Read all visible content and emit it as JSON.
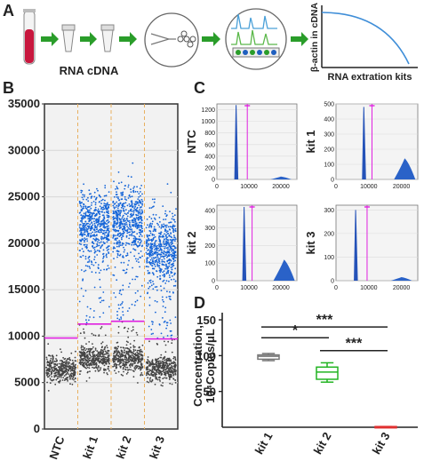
{
  "panels": {
    "A": {
      "letter": "A",
      "sample_label": "RNA cDNA",
      "ylabel": "β-actin in cDNA",
      "xlabel": "RNA extration kits"
    },
    "B": {
      "letter": "B",
      "yticks": [
        "35000",
        "30000",
        "25000",
        "20000",
        "15000",
        "10000",
        "5000",
        "0"
      ],
      "categories": [
        "NTC",
        "kit 1",
        "kit 2",
        "kit 3"
      ]
    },
    "C": {
      "letter": "C",
      "plots": [
        {
          "label": "NTC",
          "yticks": [
            "1200",
            "1000",
            "800",
            "600",
            "400",
            "200",
            "0"
          ],
          "xticks": [
            "0",
            "10000",
            "20000"
          ]
        },
        {
          "label": "kit 1",
          "yticks": [
            "500",
            "400",
            "300",
            "200",
            "100",
            "0"
          ],
          "xticks": [
            "0",
            "10000",
            "20000"
          ]
        },
        {
          "label": "kit 2",
          "yticks": [
            "400",
            "300",
            "200",
            "100",
            "0"
          ],
          "xticks": [
            "0",
            "10000",
            "20000"
          ]
        },
        {
          "label": "kit 3",
          "yticks": [
            "300",
            "200",
            "100",
            "0"
          ],
          "xticks": [
            "0",
            "10000",
            "20000"
          ]
        }
      ]
    },
    "D": {
      "letter": "D",
      "ylabel_1": "Concentration,",
      "ylabel_2": "10⁴Copies/μL",
      "yticks": [
        "150",
        "100",
        "50"
      ],
      "categories": [
        "kit 1",
        "kit 2",
        "kit 3"
      ],
      "sig": [
        "***",
        "*",
        "***"
      ]
    }
  },
  "chart_data": [
    {
      "type": "scatter",
      "panel": "B",
      "categories": [
        "NTC",
        "kit 1",
        "kit 2",
        "kit 3"
      ],
      "ylim": [
        0,
        35000
      ],
      "threshold": [
        9800,
        11300,
        11600,
        9700
      ],
      "negative_center": [
        6500,
        7500,
        7600,
        6500
      ],
      "positive_center": [
        null,
        22000,
        22500,
        19500
      ],
      "colors": {
        "positive": "#1565d8",
        "negative": "#444444",
        "threshold": "#e020e0"
      }
    },
    {
      "type": "area",
      "panel": "C",
      "xlim": [
        0,
        25000
      ],
      "series": [
        {
          "label": "NTC",
          "ylim": [
            0,
            1300
          ],
          "neg_peak": [
            6000,
            1280
          ],
          "pos_peak": [
            20000,
            50
          ],
          "threshold": 9500
        },
        {
          "label": "kit 1",
          "ylim": [
            0,
            500
          ],
          "neg_peak": [
            8500,
            480
          ],
          "pos_peak": [
            21000,
            140
          ],
          "threshold": 11000
        },
        {
          "label": "kit 2",
          "ylim": [
            0,
            430
          ],
          "neg_peak": [
            8500,
            420
          ],
          "pos_peak": [
            21000,
            120
          ],
          "threshold": 11000
        },
        {
          "label": "kit 3",
          "ylim": [
            0,
            320
          ],
          "neg_peak": [
            6000,
            300
          ],
          "pos_peak": [
            20000,
            15
          ],
          "threshold": 9500
        }
      ]
    },
    {
      "type": "box",
      "panel": "D",
      "categories": [
        "kit 1",
        "kit 2",
        "kit 3"
      ],
      "ylim": [
        0,
        160
      ],
      "boxes": [
        {
          "min": 93,
          "q1": 95,
          "median": 99,
          "q3": 101,
          "max": 103,
          "color": "#777777"
        },
        {
          "min": 63,
          "q1": 67,
          "median": 77,
          "q3": 84,
          "max": 90,
          "color": "#22b422"
        },
        {
          "min": 0,
          "q1": 0,
          "median": 0.5,
          "q3": 1,
          "max": 1,
          "color": "#e03030"
        }
      ]
    }
  ]
}
